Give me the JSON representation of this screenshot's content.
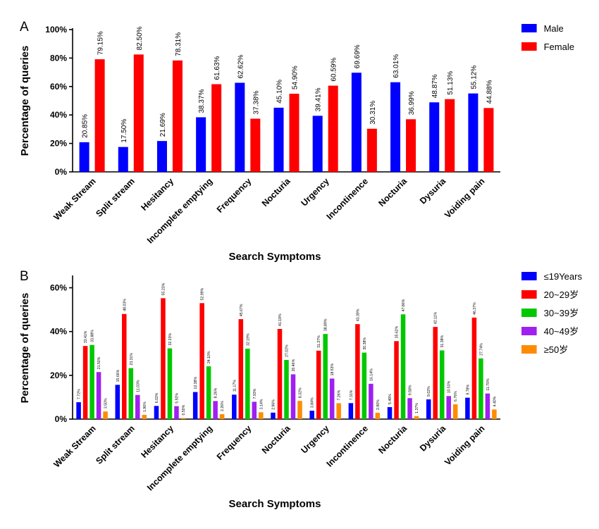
{
  "chart_data": [
    {
      "panel": "A",
      "type": "bar",
      "xlabel": "Search Symptoms",
      "ylabel": "Percentage of queries",
      "ylim": [
        0,
        100
      ],
      "yticks": [
        "0%",
        "20%",
        "40%",
        "60%",
        "80%",
        "100%"
      ],
      "categories": [
        "Weak Stream",
        "Split stream",
        "Hesitancy",
        "Incomplete emptying",
        "Frequency",
        "Nocturia",
        "Urgency",
        "Incontinence",
        "Nocturia",
        "Dysuria",
        "Voiding pain"
      ],
      "series": [
        {
          "name": "Male",
          "color": "#0000ff",
          "values": [
            20.85,
            17.5,
            21.69,
            38.37,
            62.62,
            45.1,
            39.41,
            69.69,
            63.01,
            48.87,
            55.12
          ],
          "labels": [
            "20.85%",
            "17.50%",
            "21.69%",
            "38.37%",
            "62.62%",
            "45.10%",
            "39.41%",
            "69.69%",
            "63.01%",
            "48.87%",
            "55.12%"
          ]
        },
        {
          "name": "Female",
          "color": "#ff0000",
          "values": [
            79.15,
            82.5,
            78.31,
            61.63,
            37.38,
            54.9,
            60.59,
            30.31,
            36.99,
            51.13,
            44.88
          ],
          "labels": [
            "79.15%",
            "82.50%",
            "78.31%",
            "61.63%",
            "37.38%",
            "54.90%",
            "60.59%",
            "30.31%",
            "36.99%",
            "51.13%",
            "44.88%"
          ]
        }
      ],
      "legend": "top-right"
    },
    {
      "panel": "B",
      "type": "bar",
      "xlabel": "Search Symptoms",
      "ylabel": "Percentage of queries",
      "ylim": [
        0,
        65
      ],
      "yticks": [
        "0%",
        "20%",
        "40%",
        "60%"
      ],
      "categories": [
        "Weak Stream",
        "Split stream",
        "Hesitancy",
        "Incomplete emptying",
        "Frequency",
        "Nocturia",
        "Urgency",
        "Incontinence",
        "Nocturia",
        "Dysuria",
        "Voiding pain"
      ],
      "series": [
        {
          "name": "≤19Years",
          "color": "#0000ff",
          "values": [
            7.72,
            15.66,
            6.02,
            12.38,
            11.17,
            2.96,
            3.84,
            7.31,
            5.49,
            9.02,
            9.78
          ],
          "labels": [
            "7.72%",
            "15.66%",
            "6.02%",
            "12.38%",
            "11.17%",
            "2.96%",
            "3.84%",
            "7.31%",
            "5.49%",
            "9.02%",
            "9.78%"
          ]
        },
        {
          "name": "20~29岁",
          "color": "#ff0000",
          "values": [
            33.41,
            48.03,
            55.23,
            52.99,
            45.67,
            41.19,
            31.27,
            43.39,
            35.62,
            42.11,
            46.37
          ],
          "labels": [
            "33.41%",
            "48.03%",
            "55.23%",
            "52.99%",
            "45.67%",
            "41.19%",
            "31.27%",
            "43.39%",
            "35.62%",
            "42.11%",
            "46.37%"
          ]
        },
        {
          "name": "30~39岁",
          "color": "#00c800",
          "values": [
            33.88,
            23.31,
            32.33,
            24.1,
            32.19,
            27.02,
            38.89,
            30.38,
            47.86,
            31.38,
            27.74
          ],
          "labels": [
            "33.88%",
            "23.31%",
            "32.33%",
            "24.10%",
            "32.19%",
            "27.02%",
            "38.89%",
            "30.38%",
            "47.86%",
            "31.38%",
            "27.74%"
          ]
        },
        {
          "name": "40~49岁",
          "color": "#a020f0",
          "values": [
            21.5,
            11.03,
            5.92,
            8.26,
            7.93,
            20.46,
            18.53,
            16.14,
            9.58,
            10.53,
            11.7
          ],
          "labels": [
            "21.50%",
            "11.03%",
            "5.92%",
            "8.26%",
            "7.93%",
            "20.46%",
            "18.53%",
            "16.14%",
            "9.58%",
            "10.53%",
            "11.70%"
          ]
        },
        {
          "name": "≥50岁",
          "color": "#ff8c00",
          "values": [
            3.5,
            1.96,
            0.5,
            2.26,
            3.14,
            8.32,
            7.26,
            2.9,
            1.37,
            6.76,
            4.4
          ],
          "labels": [
            "3.50%",
            "1.96%",
            "0.50%",
            "2.26%",
            "3.14%",
            "8.32%",
            "7.26%",
            "2.90%",
            "1.37%",
            "6.76%",
            "4.40%"
          ]
        }
      ],
      "legend": "top-right"
    }
  ]
}
